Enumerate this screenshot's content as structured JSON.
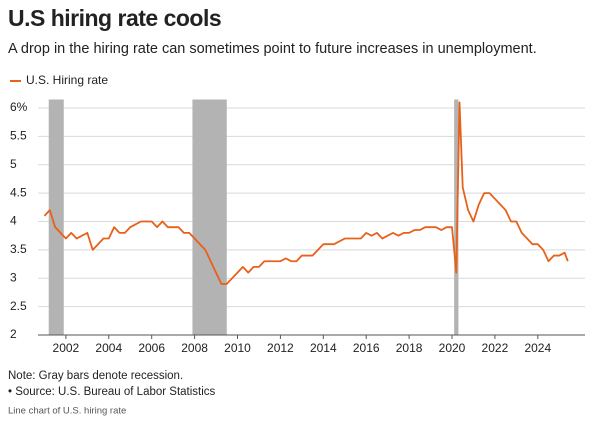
{
  "chart_data": {
    "type": "line",
    "title": "U.S hiring rate cools",
    "subtitle": "A drop in the hiring rate can sometimes point to future increases in unemployment.",
    "note": "Note: Gray bars denote recession.",
    "source": "• Source: U.S. Bureau of Labor Statistics",
    "caption": "Line chart of U.S. hiring rate",
    "x": [
      2001.0,
      2001.25,
      2001.5,
      2001.75,
      2002.0,
      2002.25,
      2002.5,
      2002.75,
      2003.0,
      2003.25,
      2003.5,
      2003.75,
      2004.0,
      2004.25,
      2004.5,
      2004.75,
      2005.0,
      2005.25,
      2005.5,
      2005.75,
      2006.0,
      2006.25,
      2006.5,
      2006.75,
      2007.0,
      2007.25,
      2007.5,
      2007.75,
      2008.0,
      2008.25,
      2008.5,
      2008.75,
      2009.0,
      2009.25,
      2009.5,
      2009.75,
      2010.0,
      2010.25,
      2010.5,
      2010.75,
      2011.0,
      2011.25,
      2011.5,
      2011.75,
      2012.0,
      2012.25,
      2012.5,
      2012.75,
      2013.0,
      2013.25,
      2013.5,
      2013.75,
      2014.0,
      2014.25,
      2014.5,
      2014.75,
      2015.0,
      2015.25,
      2015.5,
      2015.75,
      2016.0,
      2016.25,
      2016.5,
      2016.75,
      2017.0,
      2017.25,
      2017.5,
      2017.75,
      2018.0,
      2018.25,
      2018.5,
      2018.75,
      2019.0,
      2019.25,
      2019.5,
      2019.75,
      2020.0,
      2020.2,
      2020.35,
      2020.5,
      2020.75,
      2021.0,
      2021.25,
      2021.5,
      2021.75,
      2022.0,
      2022.25,
      2022.5,
      2022.75,
      2023.0,
      2023.25,
      2023.5,
      2023.75,
      2024.0,
      2024.25,
      2024.5,
      2024.75,
      2025.0,
      2025.25,
      2025.4
    ],
    "series": [
      {
        "name": "U.S. Hiring rate",
        "color": "#e8611a",
        "values": [
          4.1,
          4.2,
          3.9,
          3.8,
          3.7,
          3.8,
          3.7,
          3.75,
          3.8,
          3.5,
          3.6,
          3.7,
          3.7,
          3.9,
          3.8,
          3.8,
          3.9,
          3.95,
          4.0,
          4.0,
          4.0,
          3.9,
          4.0,
          3.9,
          3.9,
          3.9,
          3.8,
          3.8,
          3.7,
          3.6,
          3.5,
          3.3,
          3.1,
          2.9,
          2.9,
          3.0,
          3.1,
          3.2,
          3.1,
          3.2,
          3.2,
          3.3,
          3.3,
          3.3,
          3.3,
          3.35,
          3.3,
          3.3,
          3.4,
          3.4,
          3.4,
          3.5,
          3.6,
          3.6,
          3.6,
          3.65,
          3.7,
          3.7,
          3.7,
          3.7,
          3.8,
          3.75,
          3.8,
          3.7,
          3.75,
          3.8,
          3.75,
          3.8,
          3.8,
          3.85,
          3.85,
          3.9,
          3.9,
          3.9,
          3.85,
          3.9,
          3.9,
          3.1,
          6.1,
          4.6,
          4.2,
          4.0,
          4.3,
          4.5,
          4.5,
          4.4,
          4.3,
          4.2,
          4.0,
          4.0,
          3.8,
          3.7,
          3.6,
          3.6,
          3.5,
          3.3,
          3.4,
          3.4,
          3.45,
          3.3
        ]
      }
    ],
    "recessions": [
      {
        "start": 2001.2,
        "end": 2001.9
      },
      {
        "start": 2007.9,
        "end": 2009.5
      },
      {
        "start": 2020.1,
        "end": 2020.3
      }
    ],
    "recession_color": "#b3b3b3",
    "xlim": [
      2000.7,
      2026.2
    ],
    "xticks": [
      2002,
      2004,
      2006,
      2008,
      2010,
      2012,
      2014,
      2016,
      2018,
      2020,
      2022,
      2024
    ],
    "ylim": [
      2,
      6.15
    ],
    "yticks": [
      2,
      2.5,
      3,
      3.5,
      4,
      4.5,
      5,
      5.5,
      {
        "value": 6,
        "label": "6%"
      }
    ],
    "grid": true
  }
}
